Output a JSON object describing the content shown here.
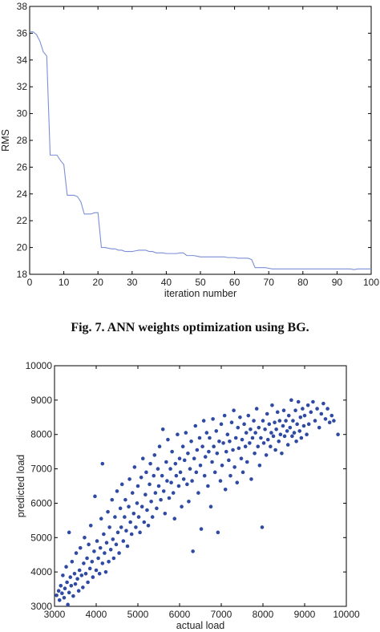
{
  "caption": "Fig. 7. ANN weights optimization using BG.",
  "chart_data": [
    {
      "type": "line",
      "xlabel": "iteration number",
      "ylabel": "RMS",
      "xlim": [
        0,
        100
      ],
      "ylim": [
        18,
        38
      ],
      "xticks": [
        0,
        10,
        20,
        30,
        40,
        50,
        60,
        70,
        80,
        90,
        100
      ],
      "yticks": [
        18,
        20,
        22,
        24,
        26,
        28,
        30,
        32,
        34,
        36,
        38
      ],
      "grid": false,
      "color": "#7b8fd6",
      "x": [
        0,
        1,
        2,
        3,
        4,
        5,
        6,
        7,
        8,
        9,
        10,
        11,
        12,
        13,
        14,
        15,
        16,
        17,
        18,
        19,
        20,
        21,
        22,
        23,
        24,
        25,
        26,
        27,
        28,
        29,
        30,
        31,
        32,
        33,
        34,
        35,
        36,
        37,
        38,
        39,
        40,
        41,
        42,
        43,
        44,
        45,
        46,
        47,
        48,
        49,
        50,
        51,
        52,
        53,
        54,
        55,
        56,
        57,
        58,
        59,
        60,
        61,
        62,
        63,
        64,
        65,
        66,
        67,
        68,
        69,
        70,
        71,
        72,
        73,
        74,
        75,
        76,
        77,
        78,
        79,
        80,
        81,
        82,
        83,
        84,
        85,
        86,
        87,
        88,
        89,
        90,
        91,
        92,
        93,
        94,
        95,
        96,
        97,
        98,
        99,
        100
      ],
      "y": [
        36.1,
        36.1,
        35.9,
        35.4,
        34.6,
        34.3,
        26.9,
        26.9,
        26.9,
        26.5,
        26.2,
        23.9,
        23.9,
        23.9,
        23.8,
        23.4,
        22.5,
        22.5,
        22.5,
        22.6,
        22.6,
        20.0,
        20.0,
        19.95,
        19.9,
        19.9,
        19.8,
        19.8,
        19.7,
        19.7,
        19.7,
        19.75,
        19.8,
        19.8,
        19.8,
        19.7,
        19.7,
        19.6,
        19.6,
        19.6,
        19.55,
        19.55,
        19.55,
        19.55,
        19.6,
        19.6,
        19.4,
        19.4,
        19.4,
        19.35,
        19.3,
        19.3,
        19.3,
        19.3,
        19.3,
        19.3,
        19.3,
        19.3,
        19.25,
        19.25,
        19.25,
        19.2,
        19.2,
        19.2,
        19.2,
        19.1,
        18.5,
        18.5,
        18.5,
        18.5,
        18.45,
        18.4,
        18.4,
        18.4,
        18.4,
        18.4,
        18.4,
        18.4,
        18.4,
        18.4,
        18.4,
        18.4,
        18.4,
        18.4,
        18.4,
        18.4,
        18.4,
        18.4,
        18.4,
        18.4,
        18.4,
        18.4,
        18.4,
        18.4,
        18.4,
        18.35,
        18.4,
        18.4,
        18.4,
        18.4,
        18.4
      ]
    },
    {
      "type": "scatter",
      "xlabel": "actual load",
      "ylabel": "predicted load",
      "xlim": [
        3000,
        10000
      ],
      "ylim": [
        3000,
        10000
      ],
      "xticks": [
        3000,
        4000,
        5000,
        6000,
        7000,
        8000,
        9000,
        10000
      ],
      "yticks": [
        3000,
        4000,
        5000,
        6000,
        7000,
        8000,
        9000,
        10000
      ],
      "grid": false,
      "color": "#2f4aa3",
      "points": [
        [
          3050,
          3320
        ],
        [
          3100,
          3450
        ],
        [
          3120,
          3180
        ],
        [
          3150,
          3600
        ],
        [
          3180,
          3380
        ],
        [
          3200,
          3900
        ],
        [
          3230,
          3250
        ],
        [
          3250,
          3520
        ],
        [
          3280,
          4150
        ],
        [
          3300,
          3700
        ],
        [
          3320,
          3050
        ],
        [
          3350,
          3400
        ],
        [
          3350,
          5150
        ],
        [
          3380,
          3850
        ],
        [
          3400,
          3600
        ],
        [
          3420,
          4300
        ],
        [
          3450,
          3300
        ],
        [
          3480,
          3950
        ],
        [
          3500,
          3650
        ],
        [
          3520,
          4550
        ],
        [
          3550,
          3800
        ],
        [
          3580,
          3450
        ],
        [
          3600,
          4050
        ],
        [
          3620,
          4700
        ],
        [
          3650,
          3900
        ],
        [
          3680,
          3550
        ],
        [
          3700,
          4250
        ],
        [
          3720,
          5000
        ],
        [
          3750,
          3950
        ],
        [
          3780,
          4400
        ],
        [
          3800,
          3700
        ],
        [
          3820,
          4800
        ],
        [
          3850,
          4100
        ],
        [
          3870,
          5350
        ],
        [
          3900,
          4300
        ],
        [
          3920,
          3850
        ],
        [
          3950,
          4600
        ],
        [
          3970,
          6200
        ],
        [
          4000,
          4050
        ],
        [
          4020,
          4900
        ],
        [
          4050,
          4400
        ],
        [
          4080,
          3950
        ],
        [
          4100,
          4700
        ],
        [
          4120,
          5550
        ],
        [
          4150,
          7150
        ],
        [
          4150,
          4250
        ],
        [
          4180,
          5100
        ],
        [
          4200,
          4550
        ],
        [
          4230,
          4000
        ],
        [
          4250,
          4850
        ],
        [
          4280,
          5750
        ],
        [
          4300,
          4300
        ],
        [
          4320,
          5300
        ],
        [
          4350,
          4650
        ],
        [
          4380,
          6100
        ],
        [
          4400,
          4950
        ],
        [
          4420,
          4400
        ],
        [
          4450,
          5600
        ],
        [
          4480,
          4800
        ],
        [
          4500,
          6350
        ],
        [
          4520,
          5150
        ],
        [
          4550,
          4550
        ],
        [
          4580,
          5850
        ],
        [
          4600,
          5300
        ],
        [
          4620,
          6550
        ],
        [
          4650,
          4900
        ],
        [
          4680,
          5600
        ],
        [
          4700,
          6100
        ],
        [
          4720,
          5200
        ],
        [
          4750,
          4750
        ],
        [
          4780,
          5900
        ],
        [
          4800,
          6700
        ],
        [
          4820,
          5450
        ],
        [
          4850,
          5100
        ],
        [
          4870,
          6300
        ],
        [
          4900,
          5700
        ],
        [
          4920,
          7050
        ],
        [
          4950,
          5300
        ],
        [
          4980,
          6000
        ],
        [
          5000,
          6500
        ],
        [
          5020,
          5600
        ],
        [
          5050,
          5150
        ],
        [
          5080,
          6750
        ],
        [
          5100,
          5900
        ],
        [
          5120,
          7300
        ],
        [
          5150,
          5450
        ],
        [
          5180,
          6250
        ],
        [
          5200,
          6900
        ],
        [
          5220,
          5800
        ],
        [
          5250,
          5350
        ],
        [
          5280,
          6550
        ],
        [
          5300,
          7150
        ],
        [
          5320,
          6050
        ],
        [
          5350,
          5600
        ],
        [
          5380,
          6800
        ],
        [
          5400,
          7400
        ],
        [
          5420,
          6300
        ],
        [
          5450,
          5850
        ],
        [
          5480,
          7000
        ],
        [
          5500,
          6500
        ],
        [
          5520,
          7650
        ],
        [
          5550,
          6100
        ],
        [
          5580,
          6800
        ],
        [
          5600,
          8150
        ],
        [
          5620,
          6350
        ],
        [
          5650,
          5700
        ],
        [
          5680,
          7200
        ],
        [
          5700,
          6650
        ],
        [
          5720,
          7850
        ],
        [
          5750,
          6150
        ],
        [
          5780,
          7000
        ],
        [
          5800,
          6600
        ],
        [
          5820,
          7500
        ],
        [
          5850,
          6300
        ],
        [
          5880,
          5550
        ],
        [
          5900,
          7150
        ],
        [
          5920,
          6800
        ],
        [
          5950,
          8000
        ],
        [
          5980,
          6500
        ],
        [
          6000,
          7300
        ],
        [
          6020,
          6900
        ],
        [
          6050,
          5900
        ],
        [
          6080,
          7650
        ],
        [
          6100,
          6700
        ],
        [
          6120,
          7250
        ],
        [
          6150,
          8050
        ],
        [
          6180,
          6550
        ],
        [
          6200,
          7450
        ],
        [
          6220,
          6050
        ],
        [
          6250,
          7000
        ],
        [
          6280,
          7800
        ],
        [
          6300,
          6650
        ],
        [
          6320,
          4600
        ],
        [
          6350,
          7300
        ],
        [
          6380,
          8250
        ],
        [
          6400,
          6900
        ],
        [
          6420,
          7550
        ],
        [
          6450,
          6300
        ],
        [
          6480,
          7900
        ],
        [
          6500,
          7100
        ],
        [
          6520,
          5250
        ],
        [
          6550,
          7650
        ],
        [
          6580,
          8400
        ],
        [
          6600,
          6800
        ],
        [
          6620,
          7350
        ],
        [
          6650,
          8050
        ],
        [
          6680,
          6500
        ],
        [
          6700,
          7500
        ],
        [
          6720,
          7900
        ],
        [
          6750,
          5900
        ],
        [
          6780,
          7200
        ],
        [
          6800,
          8450
        ],
        [
          6820,
          7650
        ],
        [
          6850,
          6900
        ],
        [
          6880,
          8100
        ],
        [
          6900,
          7450
        ],
        [
          6920,
          5150
        ],
        [
          6950,
          7800
        ],
        [
          6980,
          6650
        ],
        [
          7000,
          8300
        ],
        [
          7020,
          7100
        ],
        [
          7050,
          7750
        ],
        [
          7080,
          8550
        ],
        [
          7100,
          6400
        ],
        [
          7120,
          7500
        ],
        [
          7150,
          8000
        ],
        [
          7180,
          7250
        ],
        [
          7200,
          7800
        ],
        [
          7220,
          6800
        ],
        [
          7250,
          8350
        ],
        [
          7280,
          7550
        ],
        [
          7300,
          8700
        ],
        [
          7320,
          7050
        ],
        [
          7350,
          7900
        ],
        [
          7380,
          6600
        ],
        [
          7400,
          8200
        ],
        [
          7420,
          7600
        ],
        [
          7450,
          8500
        ],
        [
          7480,
          7300
        ],
        [
          7500,
          7850
        ],
        [
          7520,
          6900
        ],
        [
          7550,
          8300
        ],
        [
          7580,
          7650
        ],
        [
          7600,
          8050
        ],
        [
          7620,
          7200
        ],
        [
          7650,
          8550
        ],
        [
          7680,
          7750
        ],
        [
          7700,
          8150
        ],
        [
          7720,
          6700
        ],
        [
          7750,
          7900
        ],
        [
          7780,
          8400
        ],
        [
          7800,
          7450
        ],
        [
          7820,
          8050
        ],
        [
          7850,
          8750
        ],
        [
          7880,
          7650
        ],
        [
          7900,
          8200
        ],
        [
          7920,
          7100
        ],
        [
          7950,
          7900
        ],
        [
          7980,
          5300
        ],
        [
          8000,
          8400
        ],
        [
          8020,
          7750
        ],
        [
          8050,
          8150
        ],
        [
          8080,
          7400
        ],
        [
          8100,
          8600
        ],
        [
          8120,
          7850
        ],
        [
          8150,
          8300
        ],
        [
          8180,
          7650
        ],
        [
          8200,
          8050
        ],
        [
          8220,
          8850
        ],
        [
          8250,
          7950
        ],
        [
          8280,
          8350
        ],
        [
          8300,
          7550
        ],
        [
          8320,
          8150
        ],
        [
          8350,
          8650
        ],
        [
          8380,
          7800
        ],
        [
          8400,
          8400
        ],
        [
          8420,
          8000
        ],
        [
          8450,
          7450
        ],
        [
          8480,
          8250
        ],
        [
          8500,
          8700
        ],
        [
          8520,
          7950
        ],
        [
          8550,
          8400
        ],
        [
          8580,
          8100
        ],
        [
          8600,
          7700
        ],
        [
          8620,
          8550
        ],
        [
          8650,
          8200
        ],
        [
          8680,
          9000
        ],
        [
          8700,
          7950
        ],
        [
          8720,
          8400
        ],
        [
          8750,
          8050
        ],
        [
          8780,
          8700
        ],
        [
          8800,
          7800
        ],
        [
          8820,
          8300
        ],
        [
          8850,
          8950
        ],
        [
          8880,
          8100
        ],
        [
          8900,
          8500
        ],
        [
          8920,
          7900
        ],
        [
          8950,
          8750
        ],
        [
          8980,
          8250
        ],
        [
          9000,
          8550
        ],
        [
          9050,
          8000
        ],
        [
          9080,
          8850
        ],
        [
          9100,
          8300
        ],
        [
          9150,
          8650
        ],
        [
          9200,
          8950
        ],
        [
          9250,
          8400
        ],
        [
          9300,
          8750
        ],
        [
          9350,
          8200
        ],
        [
          9400,
          8600
        ],
        [
          9450,
          8900
        ],
        [
          9500,
          8450
        ],
        [
          9550,
          8750
        ],
        [
          9600,
          8350
        ],
        [
          9650,
          8550
        ],
        [
          9700,
          8400
        ],
        [
          9800,
          8000
        ]
      ]
    }
  ]
}
